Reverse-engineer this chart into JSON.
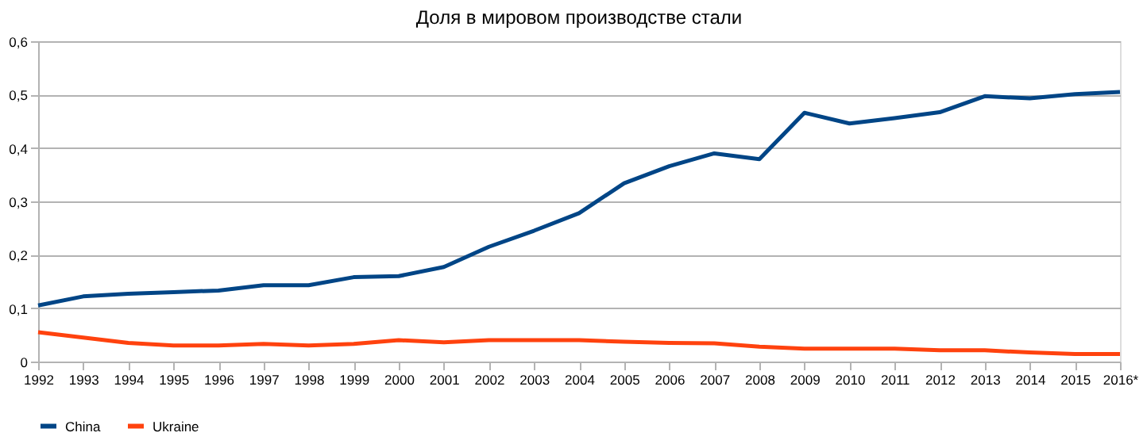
{
  "chart_data": {
    "type": "line",
    "title": "Доля в мировом производстве стали",
    "categories": [
      "1992",
      "1993",
      "1994",
      "1995",
      "1996",
      "1997",
      "1998",
      "1999",
      "2000",
      "2001",
      "2002",
      "2003",
      "2004",
      "2005",
      "2006",
      "2007",
      "2008",
      "2009",
      "2010",
      "2011",
      "2012",
      "2013",
      "2014",
      "2015",
      "2016*"
    ],
    "series": [
      {
        "name": "China",
        "color": "#004586",
        "values": [
          0.105,
          0.122,
          0.127,
          0.13,
          0.133,
          0.143,
          0.143,
          0.158,
          0.16,
          0.177,
          0.215,
          0.245,
          0.278,
          0.334,
          0.366,
          0.39,
          0.379,
          0.466,
          0.446,
          0.456,
          0.467,
          0.497,
          0.493,
          0.501,
          0.505
        ]
      },
      {
        "name": "Ukraine",
        "color": "#ff420e",
        "values": [
          0.055,
          0.045,
          0.035,
          0.03,
          0.03,
          0.033,
          0.03,
          0.033,
          0.04,
          0.036,
          0.04,
          0.04,
          0.04,
          0.037,
          0.035,
          0.034,
          0.028,
          0.024,
          0.024,
          0.024,
          0.021,
          0.021,
          0.017,
          0.014,
          0.014
        ]
      }
    ],
    "ylim": [
      0,
      0.6
    ],
    "yticks": [
      0,
      {
        "value": 0.1,
        "label": "0,1"
      },
      {
        "value": 0.2,
        "label": "0,2"
      },
      {
        "value": 0.3,
        "label": "0,3"
      },
      {
        "value": 0.4,
        "label": "0,4"
      },
      {
        "value": 0.5,
        "label": "0,5"
      },
      {
        "value": 0.6,
        "label": "0,6"
      }
    ],
    "grid": "y",
    "legend": "bottom",
    "marker": "none",
    "line_style": "solid"
  }
}
